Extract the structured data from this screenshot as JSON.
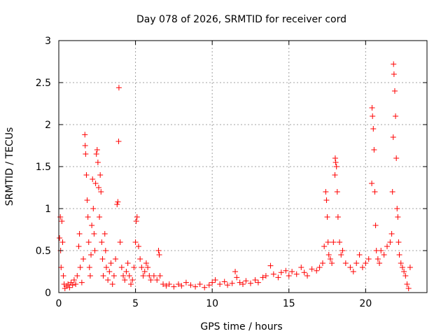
{
  "chart_data": {
    "type": "scatter",
    "title": "Day 078 of 2026, SRMTID for receiver cord",
    "xlabel": "GPS time / hours",
    "ylabel": "SRMTID / TECUs",
    "xlim": [
      0,
      24
    ],
    "ylim": [
      0,
      3
    ],
    "xticks": [
      0,
      5,
      10,
      15,
      20
    ],
    "yticks": [
      0,
      0.5,
      1,
      1.5,
      2,
      2.5,
      3
    ],
    "xtick_labels": [
      "0",
      "5",
      "10",
      "15",
      "20"
    ],
    "ytick_labels": [
      "0",
      "0.5",
      "1",
      "1.5",
      "2",
      "2.5",
      "3"
    ],
    "grid": true,
    "marker": "+",
    "series": [
      {
        "name": "SRMTID",
        "color": "#ff0000",
        "points": [
          [
            0.05,
            0.65
          ],
          [
            0.1,
            0.9
          ],
          [
            0.12,
            0.5
          ],
          [
            0.15,
            0.3
          ],
          [
            0.2,
            0.85
          ],
          [
            0.25,
            0.6
          ],
          [
            0.3,
            0.2
          ],
          [
            0.35,
            0.1
          ],
          [
            0.4,
            0.05
          ],
          [
            0.5,
            0.08
          ],
          [
            0.6,
            0.1
          ],
          [
            0.7,
            0.06
          ],
          [
            0.8,
            0.12
          ],
          [
            0.9,
            0.09
          ],
          [
            1.0,
            0.15
          ],
          [
            1.1,
            0.1
          ],
          [
            1.2,
            0.2
          ],
          [
            1.3,
            0.55
          ],
          [
            1.35,
            0.7
          ],
          [
            1.4,
            0.3
          ],
          [
            1.5,
            0.12
          ],
          [
            1.6,
            0.4
          ],
          [
            1.7,
            1.88
          ],
          [
            1.72,
            1.75
          ],
          [
            1.75,
            1.65
          ],
          [
            1.8,
            1.4
          ],
          [
            1.85,
            1.1
          ],
          [
            1.9,
            0.9
          ],
          [
            1.95,
            0.6
          ],
          [
            2.0,
            0.3
          ],
          [
            2.05,
            0.2
          ],
          [
            2.1,
            0.45
          ],
          [
            2.15,
            0.8
          ],
          [
            2.2,
            1.35
          ],
          [
            2.25,
            1.0
          ],
          [
            2.3,
            0.7
          ],
          [
            2.35,
            0.5
          ],
          [
            2.4,
            1.3
          ],
          [
            2.45,
            1.65
          ],
          [
            2.5,
            1.7
          ],
          [
            2.55,
            1.55
          ],
          [
            2.6,
            1.25
          ],
          [
            2.65,
            0.9
          ],
          [
            2.7,
            1.4
          ],
          [
            2.75,
            1.2
          ],
          [
            2.8,
            0.6
          ],
          [
            2.85,
            0.4
          ],
          [
            2.9,
            0.2
          ],
          [
            3.0,
            0.7
          ],
          [
            3.05,
            0.5
          ],
          [
            3.1,
            0.3
          ],
          [
            3.2,
            0.15
          ],
          [
            3.3,
            0.25
          ],
          [
            3.4,
            0.35
          ],
          [
            3.5,
            0.1
          ],
          [
            3.6,
            0.2
          ],
          [
            3.7,
            0.4
          ],
          [
            3.8,
            1.05
          ],
          [
            3.85,
            1.08
          ],
          [
            3.9,
            1.8
          ],
          [
            3.92,
            2.44
          ],
          [
            4.0,
            0.6
          ],
          [
            4.1,
            0.3
          ],
          [
            4.2,
            0.2
          ],
          [
            4.3,
            0.15
          ],
          [
            4.4,
            0.25
          ],
          [
            4.5,
            0.35
          ],
          [
            4.6,
            0.2
          ],
          [
            4.7,
            0.1
          ],
          [
            4.8,
            0.15
          ],
          [
            4.9,
            0.3
          ],
          [
            5.0,
            0.6
          ],
          [
            5.05,
            0.85
          ],
          [
            5.1,
            0.9
          ],
          [
            5.2,
            0.55
          ],
          [
            5.3,
            0.4
          ],
          [
            5.4,
            0.3
          ],
          [
            5.5,
            0.2
          ],
          [
            5.6,
            0.25
          ],
          [
            5.7,
            0.35
          ],
          [
            5.8,
            0.3
          ],
          [
            5.9,
            0.2
          ],
          [
            6.0,
            0.15
          ],
          [
            6.2,
            0.2
          ],
          [
            6.4,
            0.15
          ],
          [
            6.5,
            0.5
          ],
          [
            6.55,
            0.45
          ],
          [
            6.6,
            0.2
          ],
          [
            6.8,
            0.1
          ],
          [
            7.0,
            0.08
          ],
          [
            7.2,
            0.1
          ],
          [
            7.5,
            0.07
          ],
          [
            7.8,
            0.1
          ],
          [
            8.0,
            0.08
          ],
          [
            8.3,
            0.12
          ],
          [
            8.6,
            0.09
          ],
          [
            8.9,
            0.07
          ],
          [
            9.2,
            0.1
          ],
          [
            9.5,
            0.06
          ],
          [
            9.8,
            0.09
          ],
          [
            10.0,
            0.12
          ],
          [
            10.2,
            0.15
          ],
          [
            10.5,
            0.1
          ],
          [
            10.8,
            0.13
          ],
          [
            11.0,
            0.09
          ],
          [
            11.3,
            0.11
          ],
          [
            11.5,
            0.25
          ],
          [
            11.6,
            0.18
          ],
          [
            11.8,
            0.12
          ],
          [
            12.0,
            0.1
          ],
          [
            12.2,
            0.14
          ],
          [
            12.5,
            0.11
          ],
          [
            12.8,
            0.15
          ],
          [
            13.0,
            0.12
          ],
          [
            13.3,
            0.18
          ],
          [
            13.5,
            0.2
          ],
          [
            13.8,
            0.32
          ],
          [
            14.0,
            0.22
          ],
          [
            14.3,
            0.18
          ],
          [
            14.5,
            0.24
          ],
          [
            14.8,
            0.26
          ],
          [
            15.0,
            0.2
          ],
          [
            15.2,
            0.25
          ],
          [
            15.5,
            0.22
          ],
          [
            15.8,
            0.3
          ],
          [
            16.0,
            0.24
          ],
          [
            16.2,
            0.2
          ],
          [
            16.5,
            0.28
          ],
          [
            16.8,
            0.26
          ],
          [
            17.0,
            0.3
          ],
          [
            17.2,
            0.35
          ],
          [
            17.3,
            0.55
          ],
          [
            17.4,
            1.2
          ],
          [
            17.45,
            1.1
          ],
          [
            17.5,
            0.9
          ],
          [
            17.55,
            0.6
          ],
          [
            17.6,
            0.45
          ],
          [
            17.7,
            0.4
          ],
          [
            17.8,
            0.35
          ],
          [
            17.9,
            0.6
          ],
          [
            18.0,
            1.4
          ],
          [
            18.02,
            1.6
          ],
          [
            18.05,
            1.55
          ],
          [
            18.1,
            1.5
          ],
          [
            18.15,
            1.2
          ],
          [
            18.2,
            0.9
          ],
          [
            18.3,
            0.6
          ],
          [
            18.4,
            0.45
          ],
          [
            18.5,
            0.5
          ],
          [
            18.7,
            0.35
          ],
          [
            19.0,
            0.3
          ],
          [
            19.2,
            0.25
          ],
          [
            19.4,
            0.35
          ],
          [
            19.6,
            0.45
          ],
          [
            19.8,
            0.3
          ],
          [
            20.0,
            0.35
          ],
          [
            20.2,
            0.4
          ],
          [
            20.4,
            1.3
          ],
          [
            20.42,
            2.2
          ],
          [
            20.45,
            2.1
          ],
          [
            20.5,
            1.95
          ],
          [
            20.55,
            1.7
          ],
          [
            20.6,
            1.2
          ],
          [
            20.65,
            0.8
          ],
          [
            20.7,
            0.5
          ],
          [
            20.8,
            0.4
          ],
          [
            20.9,
            0.35
          ],
          [
            21.0,
            0.5
          ],
          [
            21.2,
            0.45
          ],
          [
            21.4,
            0.55
          ],
          [
            21.6,
            0.6
          ],
          [
            21.7,
            0.7
          ],
          [
            21.75,
            1.2
          ],
          [
            21.8,
            1.85
          ],
          [
            21.82,
            2.72
          ],
          [
            21.85,
            2.6
          ],
          [
            21.9,
            2.4
          ],
          [
            21.95,
            2.1
          ],
          [
            22.0,
            1.6
          ],
          [
            22.05,
            1.0
          ],
          [
            22.1,
            0.9
          ],
          [
            22.15,
            0.6
          ],
          [
            22.2,
            0.45
          ],
          [
            22.3,
            0.35
          ],
          [
            22.4,
            0.3
          ],
          [
            22.5,
            0.25
          ],
          [
            22.6,
            0.2
          ],
          [
            22.7,
            0.1
          ],
          [
            22.8,
            0.05
          ],
          [
            22.9,
            0.3
          ]
        ]
      }
    ]
  }
}
